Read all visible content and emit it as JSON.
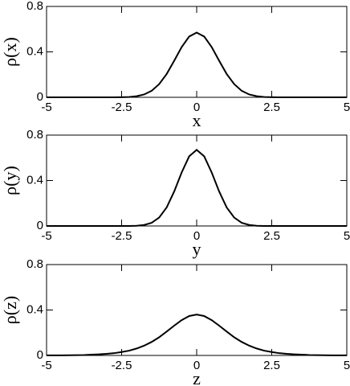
{
  "chart_data": [
    {
      "type": "line",
      "ylabel": "ρ(x)",
      "xlabel": "x",
      "x": [
        -5,
        -4.75,
        -4.5,
        -4.25,
        -4,
        -3.75,
        -3.5,
        -3.25,
        -3,
        -2.75,
        -2.5,
        -2.25,
        -2,
        -1.75,
        -1.5,
        -1.25,
        -1,
        -0.75,
        -0.5,
        -0.25,
        0,
        0.25,
        0.5,
        0.75,
        1,
        1.25,
        1.5,
        1.75,
        2,
        2.25,
        2.5,
        2.75,
        3,
        3.25,
        3.5,
        3.75,
        4,
        4.25,
        4.5,
        4.75,
        5
      ],
      "series": [
        {
          "color": "#000000",
          "values": [
            0,
            0,
            0,
            0,
            0,
            0,
            0,
            0,
            0,
            0,
            0.001,
            0.003,
            0.01,
            0.025,
            0.057,
            0.116,
            0.205,
            0.321,
            0.442,
            0.535,
            0.57,
            0.535,
            0.442,
            0.321,
            0.205,
            0.116,
            0.057,
            0.025,
            0.01,
            0.003,
            0.001,
            0,
            0,
            0,
            0,
            0,
            0,
            0,
            0,
            0,
            0
          ]
        }
      ],
      "xlim": [
        -5,
        5
      ],
      "ylim": [
        0,
        0.8
      ],
      "xticks": [
        -5,
        -2.5,
        0,
        2.5,
        5
      ],
      "yticks": [
        0,
        0.4,
        0.8
      ]
    },
    {
      "type": "line",
      "ylabel": "ρ(y)",
      "xlabel": "y",
      "x": [
        -5,
        -4.75,
        -4.5,
        -4.25,
        -4,
        -3.75,
        -3.5,
        -3.25,
        -3,
        -2.75,
        -2.5,
        -2.25,
        -2,
        -1.75,
        -1.5,
        -1.25,
        -1,
        -0.75,
        -0.5,
        -0.25,
        0,
        0.25,
        0.5,
        0.75,
        1,
        1.25,
        1.5,
        1.75,
        2,
        2.25,
        2.5,
        2.75,
        3,
        3.25,
        3.5,
        3.75,
        4,
        4.25,
        4.5,
        4.75,
        5
      ],
      "series": [
        {
          "color": "#000000",
          "values": [
            0,
            0,
            0,
            0,
            0,
            0,
            0,
            0,
            0,
            0,
            0,
            0,
            0.002,
            0.009,
            0.028,
            0.074,
            0.163,
            0.303,
            0.471,
            0.613,
            0.67,
            0.613,
            0.471,
            0.303,
            0.163,
            0.074,
            0.028,
            0.009,
            0.002,
            0,
            0,
            0,
            0,
            0,
            0,
            0,
            0,
            0,
            0,
            0,
            0
          ]
        }
      ],
      "xlim": [
        -5,
        5
      ],
      "ylim": [
        0,
        0.8
      ],
      "xticks": [
        -5,
        -2.5,
        0,
        2.5,
        5
      ],
      "yticks": [
        0,
        0.4,
        0.8
      ]
    },
    {
      "type": "line",
      "ylabel": "ρ(z)",
      "xlabel": "z",
      "x": [
        -5,
        -4.75,
        -4.5,
        -4.25,
        -4,
        -3.75,
        -3.5,
        -3.25,
        -3,
        -2.75,
        -2.5,
        -2.25,
        -2,
        -1.75,
        -1.5,
        -1.25,
        -1,
        -0.75,
        -0.5,
        -0.25,
        0,
        0.25,
        0.5,
        0.75,
        1,
        1.25,
        1.5,
        1.75,
        2,
        2.25,
        2.5,
        2.75,
        3,
        3.25,
        3.5,
        3.75,
        4,
        4.25,
        4.5,
        4.75,
        5
      ],
      "series": [
        {
          "color": "#000000",
          "values": [
            0.001,
            0.001,
            0.001,
            0.002,
            0.003,
            0.004,
            0.007,
            0.01,
            0.014,
            0.02,
            0.03,
            0.042,
            0.061,
            0.086,
            0.119,
            0.16,
            0.21,
            0.262,
            0.311,
            0.347,
            0.36,
            0.347,
            0.311,
            0.262,
            0.21,
            0.16,
            0.119,
            0.086,
            0.061,
            0.042,
            0.03,
            0.02,
            0.014,
            0.01,
            0.007,
            0.004,
            0.003,
            0.002,
            0.001,
            0.001,
            0.001
          ]
        }
      ],
      "xlim": [
        -5,
        5
      ],
      "ylim": [
        0,
        0.8
      ],
      "xticks": [
        -5,
        -2.5,
        0,
        2.5,
        5
      ],
      "yticks": [
        0,
        0.4,
        0.8
      ]
    }
  ]
}
